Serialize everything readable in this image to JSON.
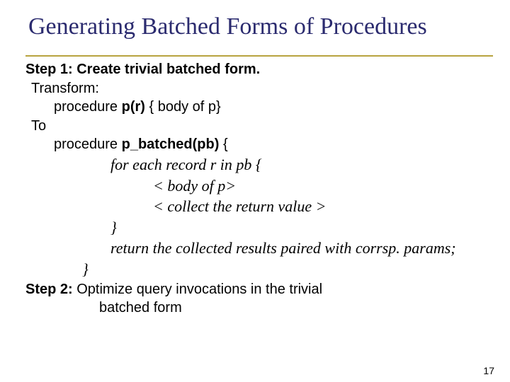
{
  "slide": {
    "title": "Generating Batched Forms of Procedures",
    "title_color": "#2b2b6f",
    "underline_color": "#b8a33f",
    "background_color": "#ffffff",
    "page_number": "17",
    "title_fontsize": 34,
    "body_fontsize": 20,
    "serif_ital_fontsize": 22,
    "lines": {
      "step1": "Step 1: Create trivial batched form.",
      "transform": "Transform:",
      "proc_pr_prefix": "procedure ",
      "proc_pr_bold": "p(r)",
      "proc_pr_suffix": " { body of p}",
      "to": "To",
      "proc_pb_prefix": "procedure ",
      "proc_pb_bold": "p_batched(pb)",
      "proc_pb_suffix": " {",
      "foreach": "for each record r in pb {",
      "body_of_p": "< body of p>",
      "collect": "< collect the return value >",
      "brace1": "}",
      "return_line": "return the collected results paired with corrsp. params;",
      "brace2": "}",
      "step2a": "Step 2:",
      "step2b": " Optimize query invocations in the trivial",
      "step2c": "batched form"
    }
  }
}
